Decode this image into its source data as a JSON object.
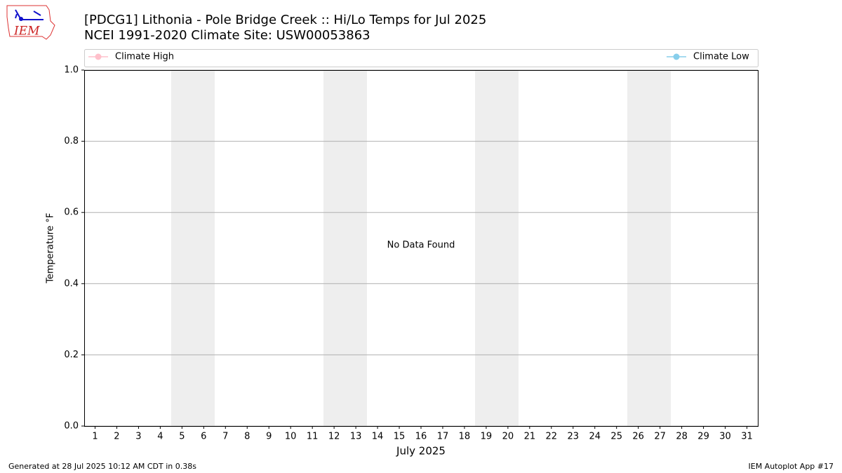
{
  "chart_data": {
    "type": "line",
    "logo": "IEM",
    "title": "[PDCG1] Lithonia - Pole Bridge Creek :: Hi/Lo Temps for Jul 2025",
    "subtitle": "NCEI 1991-2020 Climate Site: USW00053863",
    "x_label": "July 2025",
    "y_label": "Temperature °F",
    "annotation": "No Data Found",
    "footer_left": "Generated at 28 Jul 2025 10:12 AM CDT in 0.38s",
    "footer_right": "IEM Autoplot App #17",
    "x": [
      1,
      2,
      3,
      4,
      5,
      6,
      7,
      8,
      9,
      10,
      11,
      12,
      13,
      14,
      15,
      16,
      17,
      18,
      19,
      20,
      21,
      22,
      23,
      24,
      25,
      26,
      27,
      28,
      29,
      30,
      31
    ],
    "series": [
      {
        "name": "Climate High",
        "color": "#ffc0cb",
        "values": [
          null,
          null,
          null,
          null,
          null,
          null,
          null,
          null,
          null,
          null,
          null,
          null,
          null,
          null,
          null,
          null,
          null,
          null,
          null,
          null,
          null,
          null,
          null,
          null,
          null,
          null,
          null,
          null,
          null,
          null,
          null
        ]
      },
      {
        "name": "Climate Low",
        "color": "#87ceeb",
        "values": [
          null,
          null,
          null,
          null,
          null,
          null,
          null,
          null,
          null,
          null,
          null,
          null,
          null,
          null,
          null,
          null,
          null,
          null,
          null,
          null,
          null,
          null,
          null,
          null,
          null,
          null,
          null,
          null,
          null,
          null,
          null
        ]
      }
    ],
    "xlim": [
      0.5,
      31.5
    ],
    "xticks": [
      1,
      2,
      3,
      4,
      5,
      6,
      7,
      8,
      9,
      10,
      11,
      12,
      13,
      14,
      15,
      16,
      17,
      18,
      19,
      20,
      21,
      22,
      23,
      24,
      25,
      26,
      27,
      28,
      29,
      30,
      31
    ],
    "ylim": [
      0,
      1
    ],
    "yticks": [
      {
        "value": 0,
        "label": "0.0"
      },
      {
        "value": 0.2,
        "label": "0.2"
      },
      {
        "value": 0.4,
        "label": "0.4"
      },
      {
        "value": 0.6,
        "label": "0.6"
      },
      {
        "value": 0.8,
        "label": "0.8"
      },
      {
        "value": 1,
        "label": "1.0"
      }
    ],
    "grid": true
  }
}
